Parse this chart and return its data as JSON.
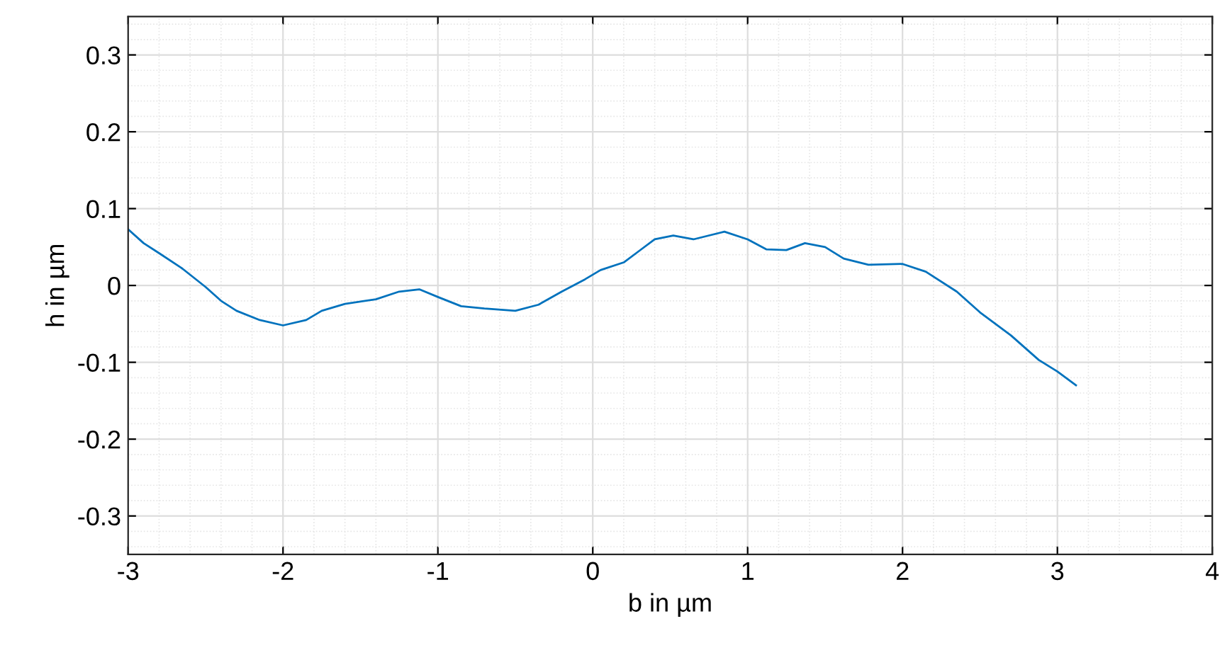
{
  "chart_data": {
    "type": "line",
    "xlabel": "b in µm",
    "ylabel": "h in µm",
    "xlim": [
      -3,
      4
    ],
    "ylim": [
      -0.35,
      0.35
    ],
    "xticks": [
      -3,
      -2,
      -1,
      0,
      1,
      2,
      3,
      4
    ],
    "yticks": [
      -0.3,
      -0.2,
      -0.1,
      0,
      0.1,
      0.2,
      0.3
    ],
    "grid": true,
    "series": [
      {
        "color": "#0072bd",
        "x": [
          -3.0,
          -2.9,
          -2.8,
          -2.65,
          -2.5,
          -2.4,
          -2.3,
          -2.15,
          -2.0,
          -1.85,
          -1.75,
          -1.6,
          -1.4,
          -1.25,
          -1.12,
          -1.0,
          -0.85,
          -0.7,
          -0.5,
          -0.35,
          -0.2,
          -0.05,
          0.05,
          0.2,
          0.3,
          0.4,
          0.52,
          0.65,
          0.85,
          1.0,
          1.12,
          1.25,
          1.37,
          1.5,
          1.62,
          1.78,
          2.0,
          2.15,
          2.35,
          2.5,
          2.7,
          2.88,
          3.0,
          3.12
        ],
        "values": [
          0.073,
          0.055,
          0.042,
          0.022,
          -0.002,
          -0.02,
          -0.033,
          -0.045,
          -0.052,
          -0.045,
          -0.033,
          -0.024,
          -0.018,
          -0.008,
          -0.005,
          -0.015,
          -0.027,
          -0.03,
          -0.033,
          -0.025,
          -0.008,
          0.008,
          0.02,
          0.03,
          0.045,
          0.06,
          0.065,
          0.06,
          0.07,
          0.06,
          0.047,
          0.046,
          0.055,
          0.05,
          0.035,
          0.027,
          0.028,
          0.018,
          -0.008,
          -0.035,
          -0.065,
          -0.097,
          -0.112,
          -0.13
        ]
      }
    ]
  }
}
